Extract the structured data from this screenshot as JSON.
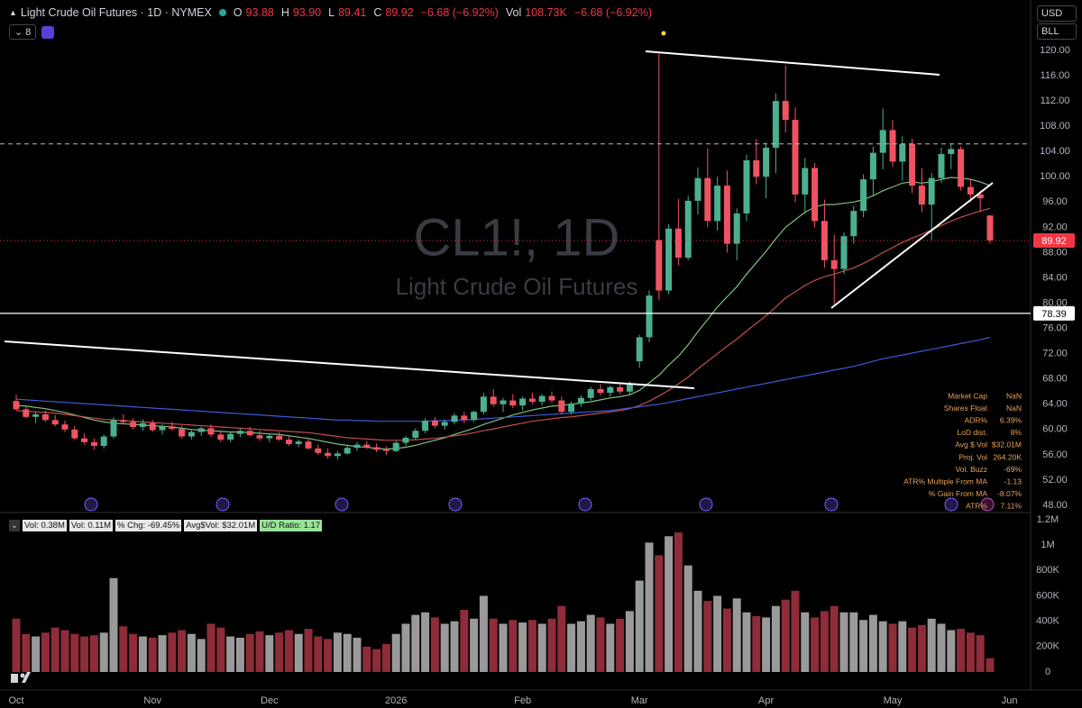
{
  "header": {
    "title": "Light Crude Oil Futures · 1D · NYMEX",
    "ohlc": [
      [
        "O",
        "93.88"
      ],
      [
        "H",
        "93.90"
      ],
      [
        "L",
        "89.41"
      ],
      [
        "C",
        "89.92"
      ]
    ],
    "change": "−6.68 (−6.92%)",
    "vol_label": "Vol",
    "vol": "108.73K",
    "vol_change": "−6.68 (−6.92%)",
    "interval": "8"
  },
  "toolbar": {
    "currency": "USD",
    "unit": "BLL"
  },
  "volume_legend": [
    "Vol: 0.38M",
    "Vol: 0.11M",
    "% Chg: -69.45%",
    "Avg$Vol: $32.01M",
    "U/D Ratio: 1.17"
  ],
  "stats": [
    [
      "Market Cap",
      "NaN"
    ],
    [
      "Shares Float",
      "NaN"
    ],
    [
      "ADR%",
      "6.39%"
    ],
    [
      "LoD dist.",
      "8%"
    ],
    [
      "Avg $ Vol",
      "$32.01M"
    ],
    [
      "Proj. Vol",
      "264.20K"
    ],
    [
      "Vol. Buzz",
      "-69%"
    ],
    [
      "ATR% Multiple From MA",
      "-1.13"
    ],
    [
      "% Gain From MA",
      "-8.07%"
    ],
    [
      "ATR%",
      "7.11%"
    ]
  ],
  "chart_data": {
    "type": "candlestick",
    "watermark": [
      "CL1!, 1D",
      "Light Crude Oil Futures"
    ],
    "categories": [
      "Oct",
      null,
      null,
      null,
      null,
      null,
      null,
      null,
      null,
      null,
      null,
      null,
      null,
      null,
      "Nov",
      null,
      null,
      null,
      null,
      null,
      null,
      null,
      null,
      null,
      null,
      null,
      "Dec",
      null,
      null,
      null,
      null,
      null,
      null,
      null,
      null,
      null,
      null,
      null,
      null,
      "2026",
      null,
      null,
      null,
      null,
      null,
      null,
      null,
      null,
      null,
      null,
      null,
      null,
      "Feb",
      null,
      null,
      null,
      null,
      null,
      null,
      null,
      null,
      null,
      null,
      null,
      "Mar",
      null,
      null,
      null,
      null,
      null,
      null,
      null,
      null,
      null,
      null,
      null,
      null,
      "Apr",
      null,
      null,
      null,
      null,
      null,
      null,
      null,
      null,
      null,
      null,
      null,
      null,
      "May",
      null,
      null,
      null,
      null,
      null,
      null,
      null,
      null,
      null,
      null,
      null,
      "Jun"
    ],
    "candles": [
      [
        64.5,
        65.5,
        63.0,
        63.2
      ],
      [
        63.2,
        63.8,
        61.8,
        62.0
      ],
      [
        62.0,
        62.8,
        61.0,
        62.4
      ],
      [
        62.4,
        63.0,
        61.2,
        61.5
      ],
      [
        61.5,
        62.3,
        60.5,
        60.8
      ],
      [
        60.8,
        61.4,
        59.6,
        60.0
      ],
      [
        60.0,
        60.6,
        58.4,
        58.6
      ],
      [
        58.6,
        59.4,
        57.6,
        58.0
      ],
      [
        58.0,
        58.6,
        56.8,
        57.4
      ],
      [
        57.4,
        59.2,
        57.0,
        58.9
      ],
      [
        58.9,
        62.0,
        58.6,
        61.5
      ],
      [
        61.5,
        62.4,
        60.8,
        61.2
      ],
      [
        61.2,
        61.8,
        60.0,
        60.4
      ],
      [
        60.4,
        61.6,
        59.8,
        61.0
      ],
      [
        61.0,
        61.5,
        59.6,
        59.9
      ],
      [
        59.9,
        60.8,
        59.2,
        60.5
      ],
      [
        60.5,
        61.2,
        59.8,
        60.1
      ],
      [
        60.1,
        60.6,
        58.6,
        58.9
      ],
      [
        58.9,
        60.0,
        58.4,
        59.6
      ],
      [
        59.6,
        60.4,
        59.0,
        60.2
      ],
      [
        60.2,
        60.8,
        58.8,
        59.2
      ],
      [
        59.2,
        59.8,
        58.0,
        58.4
      ],
      [
        58.4,
        59.6,
        58.0,
        59.3
      ],
      [
        59.3,
        60.2,
        58.8,
        59.8
      ],
      [
        59.8,
        60.4,
        58.9,
        59.1
      ],
      [
        59.1,
        59.8,
        58.2,
        58.6
      ],
      [
        58.6,
        59.4,
        58.0,
        59.0
      ],
      [
        59.0,
        59.6,
        58.2,
        58.4
      ],
      [
        58.4,
        58.9,
        57.4,
        57.7
      ],
      [
        57.7,
        58.4,
        57.2,
        58.1
      ],
      [
        58.1,
        58.6,
        56.8,
        57.0
      ],
      [
        57.0,
        57.6,
        56.0,
        56.3
      ],
      [
        56.3,
        57.0,
        55.4,
        55.8
      ],
      [
        55.8,
        56.6,
        55.2,
        56.2
      ],
      [
        56.2,
        57.4,
        56.0,
        57.1
      ],
      [
        57.1,
        58.0,
        56.6,
        57.6
      ],
      [
        57.6,
        58.2,
        56.9,
        57.2
      ],
      [
        57.2,
        57.8,
        56.4,
        56.8
      ],
      [
        56.8,
        57.3,
        56.0,
        56.6
      ],
      [
        56.6,
        58.2,
        56.4,
        57.9
      ],
      [
        57.9,
        59.0,
        57.4,
        58.7
      ],
      [
        58.7,
        60.2,
        58.4,
        59.8
      ],
      [
        59.8,
        61.8,
        59.4,
        61.4
      ],
      [
        61.4,
        62.0,
        60.2,
        60.6
      ],
      [
        60.6,
        61.6,
        60.0,
        61.2
      ],
      [
        61.2,
        62.6,
        60.8,
        62.2
      ],
      [
        62.2,
        62.8,
        61.0,
        61.5
      ],
      [
        61.5,
        63.0,
        61.2,
        62.8
      ],
      [
        62.8,
        65.8,
        62.4,
        65.2
      ],
      [
        65.2,
        66.4,
        63.6,
        64.0
      ],
      [
        64.0,
        65.0,
        62.8,
        64.6
      ],
      [
        64.6,
        65.6,
        63.4,
        63.8
      ],
      [
        63.8,
        65.2,
        63.0,
        64.9
      ],
      [
        64.9,
        65.8,
        64.0,
        64.4
      ],
      [
        64.4,
        65.6,
        63.8,
        65.3
      ],
      [
        65.3,
        66.0,
        64.2,
        64.6
      ],
      [
        64.6,
        65.2,
        62.4,
        62.8
      ],
      [
        62.8,
        64.4,
        62.4,
        64.1
      ],
      [
        64.1,
        65.4,
        63.6,
        65.0
      ],
      [
        65.0,
        66.8,
        64.6,
        66.4
      ],
      [
        66.4,
        67.2,
        65.4,
        65.8
      ],
      [
        65.8,
        67.0,
        65.2,
        66.7
      ],
      [
        66.7,
        67.4,
        65.6,
        66.0
      ],
      [
        66.0,
        67.6,
        65.4,
        67.2
      ],
      [
        70.8,
        75.0,
        69.8,
        74.6
      ],
      [
        74.6,
        82.0,
        73.8,
        81.2
      ],
      [
        90.0,
        119.5,
        80.5,
        82.0
      ],
      [
        82.0,
        92.5,
        81.4,
        91.8
      ],
      [
        91.8,
        96.5,
        86.0,
        87.2
      ],
      [
        87.2,
        97.0,
        86.8,
        96.2
      ],
      [
        96.2,
        101.5,
        94.0,
        99.8
      ],
      [
        99.8,
        104.5,
        92.0,
        93.0
      ],
      [
        93.0,
        100.0,
        91.5,
        98.6
      ],
      [
        98.6,
        101.0,
        88.0,
        89.4
      ],
      [
        89.4,
        95.0,
        86.8,
        94.2
      ],
      [
        94.2,
        103.5,
        93.0,
        102.6
      ],
      [
        102.6,
        106.0,
        98.8,
        100.0
      ],
      [
        100.0,
        105.4,
        96.6,
        104.6
      ],
      [
        104.6,
        113.2,
        100.6,
        112.0
      ],
      [
        112.0,
        117.6,
        107.0,
        109.0
      ],
      [
        109.0,
        111.0,
        96.0,
        97.2
      ],
      [
        97.2,
        103.0,
        94.2,
        101.4
      ],
      [
        101.4,
        102.2,
        92.0,
        93.0
      ],
      [
        93.0,
        96.4,
        85.6,
        86.8
      ],
      [
        86.8,
        90.8,
        79.8,
        85.4
      ],
      [
        85.4,
        91.2,
        84.6,
        90.6
      ],
      [
        90.6,
        95.4,
        89.4,
        94.6
      ],
      [
        94.6,
        100.4,
        93.6,
        99.6
      ],
      [
        99.6,
        104.8,
        97.0,
        103.8
      ],
      [
        103.8,
        110.8,
        101.2,
        107.4
      ],
      [
        107.4,
        109.0,
        101.6,
        102.4
      ],
      [
        102.4,
        106.4,
        99.4,
        105.2
      ],
      [
        105.2,
        106.0,
        97.4,
        98.6
      ],
      [
        98.6,
        101.4,
        94.4,
        95.6
      ],
      [
        95.6,
        100.6,
        90.0,
        99.8
      ],
      [
        99.8,
        104.6,
        99.0,
        103.6
      ],
      [
        103.6,
        105.2,
        101.2,
        104.4
      ],
      [
        104.4,
        104.8,
        97.8,
        98.4
      ],
      [
        98.4,
        99.6,
        96.0,
        97.2
      ],
      [
        97.2,
        97.8,
        94.4,
        96.6
      ],
      [
        93.88,
        93.9,
        89.41,
        89.92
      ],
      null,
      null
    ],
    "volume": [
      420000,
      300000,
      280000,
      310000,
      350000,
      330000,
      300000,
      280000,
      290000,
      310000,
      740000,
      360000,
      300000,
      280000,
      270000,
      290000,
      310000,
      330000,
      300000,
      260000,
      380000,
      350000,
      280000,
      270000,
      300000,
      320000,
      290000,
      310000,
      330000,
      300000,
      340000,
      280000,
      260000,
      310000,
      300000,
      270000,
      200000,
      180000,
      220000,
      300000,
      380000,
      450000,
      470000,
      430000,
      380000,
      400000,
      490000,
      420000,
      600000,
      420000,
      380000,
      410000,
      390000,
      410000,
      380000,
      420000,
      520000,
      380000,
      400000,
      450000,
      430000,
      380000,
      420000,
      480000,
      720000,
      1020000,
      920000,
      1070000,
      1100000,
      840000,
      640000,
      560000,
      600000,
      500000,
      580000,
      470000,
      440000,
      430000,
      520000,
      570000,
      640000,
      470000,
      430000,
      480000,
      520000,
      470000,
      470000,
      410000,
      450000,
      400000,
      380000,
      400000,
      350000,
      370000,
      420000,
      380000,
      330000,
      340000,
      310000,
      290000,
      108730,
      null,
      null
    ],
    "moving_averages": [
      {
        "color": "#7fbf7f",
        "values": [
          63.8,
          63.7,
          63.5,
          63.3,
          63.0,
          62.7,
          62.3,
          61.9,
          61.5,
          61.2,
          61.0,
          60.9,
          60.8,
          60.7,
          60.6,
          60.5,
          60.4,
          60.2,
          60.0,
          59.9,
          59.8,
          59.7,
          59.6,
          59.6,
          59.5,
          59.4,
          59.3,
          59.2,
          59.0,
          58.8,
          58.6,
          58.3,
          58.0,
          57.7,
          57.5,
          57.3,
          57.2,
          57.0,
          56.9,
          57.0,
          57.2,
          57.5,
          57.9,
          58.3,
          58.7,
          59.2,
          59.7,
          60.2,
          60.8,
          61.3,
          61.8,
          62.3,
          62.7,
          63.1,
          63.4,
          63.7,
          63.8,
          64.0,
          64.2,
          64.4,
          64.7,
          65.0,
          65.2,
          65.5,
          66.2,
          67.4,
          68.6,
          70.2,
          71.6,
          73.4,
          75.5,
          77.4,
          79.4,
          81.0,
          82.6,
          84.6,
          86.4,
          88.2,
          90.2,
          92.0,
          93.2,
          94.4,
          95.2,
          95.6,
          95.6,
          95.8,
          96.0,
          96.4,
          97.0,
          97.8,
          98.4,
          99.0,
          99.2,
          99.0,
          99.2,
          99.6,
          99.9,
          99.8,
          99.6,
          99.2,
          98.6,
          null,
          null
        ]
      },
      {
        "color": "#c0504d",
        "values": [
          63.0,
          62.9,
          62.8,
          62.7,
          62.6,
          62.4,
          62.2,
          62.0,
          61.8,
          61.6,
          61.5,
          61.4,
          61.3,
          61.2,
          61.1,
          61.0,
          60.9,
          60.8,
          60.7,
          60.6,
          60.5,
          60.4,
          60.3,
          60.2,
          60.1,
          60.0,
          59.9,
          59.8,
          59.7,
          59.6,
          59.5,
          59.3,
          59.1,
          58.9,
          58.7,
          58.6,
          58.5,
          58.4,
          58.3,
          58.3,
          58.3,
          58.4,
          58.5,
          58.6,
          58.8,
          59.0,
          59.2,
          59.5,
          59.8,
          60.1,
          60.4,
          60.7,
          61.0,
          61.3,
          61.5,
          61.7,
          61.9,
          62.0,
          62.2,
          62.4,
          62.6,
          62.8,
          63.0,
          63.3,
          63.8,
          64.5,
          65.3,
          66.2,
          67.2,
          68.3,
          69.6,
          70.8,
          72.0,
          73.2,
          74.3,
          75.6,
          76.8,
          78.0,
          79.4,
          80.8,
          81.8,
          82.8,
          83.6,
          84.2,
          84.6,
          85.1,
          85.6,
          86.3,
          87.1,
          88.0,
          88.8,
          89.6,
          90.3,
          90.9,
          91.6,
          92.3,
          93.0,
          93.6,
          94.1,
          94.6,
          95.0,
          null,
          null
        ]
      },
      {
        "color": "#3d5bd9",
        "values": [
          64.8,
          64.7,
          64.6,
          64.5,
          64.4,
          64.3,
          64.2,
          64.1,
          64.0,
          63.9,
          63.8,
          63.7,
          63.6,
          63.5,
          63.4,
          63.3,
          63.2,
          63.1,
          63.0,
          62.9,
          62.8,
          62.7,
          62.6,
          62.5,
          62.4,
          62.3,
          62.2,
          62.1,
          62.0,
          61.9,
          61.8,
          61.7,
          61.6,
          61.5,
          61.5,
          61.4,
          61.4,
          61.3,
          61.3,
          61.3,
          61.3,
          61.3,
          61.3,
          61.4,
          61.4,
          61.5,
          61.5,
          61.6,
          61.7,
          61.8,
          61.9,
          62.0,
          62.1,
          62.2,
          62.3,
          62.4,
          62.5,
          62.6,
          62.7,
          62.8,
          62.9,
          63.0,
          63.2,
          63.4,
          63.6,
          63.8,
          64.0,
          64.3,
          64.6,
          64.9,
          65.2,
          65.5,
          65.8,
          66.1,
          66.4,
          66.7,
          67.0,
          67.3,
          67.6,
          67.9,
          68.2,
          68.5,
          68.8,
          69.1,
          69.4,
          69.7,
          70.0,
          70.4,
          70.8,
          71.2,
          71.5,
          71.8,
          72.1,
          72.4,
          72.7,
          73.0,
          73.3,
          73.6,
          73.9,
          74.2,
          74.6,
          null,
          null
        ]
      }
    ],
    "ylim": [
      48,
      120
    ],
    "yticks": [
      {
        "value": 48,
        "label": "48.00"
      },
      {
        "value": 52,
        "label": "52.00"
      },
      {
        "value": 56,
        "label": "56.00"
      },
      {
        "value": 60,
        "label": "60.00"
      },
      {
        "value": 64,
        "label": "64.00"
      },
      {
        "value": 68,
        "label": "68.00"
      },
      {
        "value": 72,
        "label": "72.00"
      },
      {
        "value": 76,
        "label": "76.00"
      },
      {
        "value": 80,
        "label": "80.00"
      },
      {
        "value": 84,
        "label": "84.00"
      },
      {
        "value": 88,
        "label": "88.00"
      },
      {
        "value": 92,
        "label": "92.00"
      },
      {
        "value": 96,
        "label": "96.00"
      },
      {
        "value": 100,
        "label": "100.00"
      },
      {
        "value": 104,
        "label": "104.00"
      },
      {
        "value": 108,
        "label": "108.00"
      },
      {
        "value": 112,
        "label": "112.00"
      },
      {
        "value": 116,
        "label": "116.00"
      },
      {
        "value": 120,
        "label": "120.00"
      }
    ],
    "y2lim": [
      0,
      1200000
    ],
    "y2ticks": [
      0,
      {
        "value": 200000,
        "label": "200K"
      },
      {
        "value": 400000,
        "label": "400K"
      },
      {
        "value": 600000,
        "label": "600K"
      },
      {
        "value": 800000,
        "label": "800K"
      },
      {
        "value": 1000000,
        "label": "1M"
      },
      {
        "value": 1200000,
        "label": "1.2M"
      }
    ],
    "levels": [
      78.39
    ],
    "dashed_levels": [
      105.2
    ],
    "up_color": "#4caf8f",
    "down_color": "#ef5361",
    "volume_up_color": "#9a9a9a",
    "volume_down_color": "#8e2c3a",
    "last_price_color": "#f23645",
    "level_color": "#ffffff"
  }
}
